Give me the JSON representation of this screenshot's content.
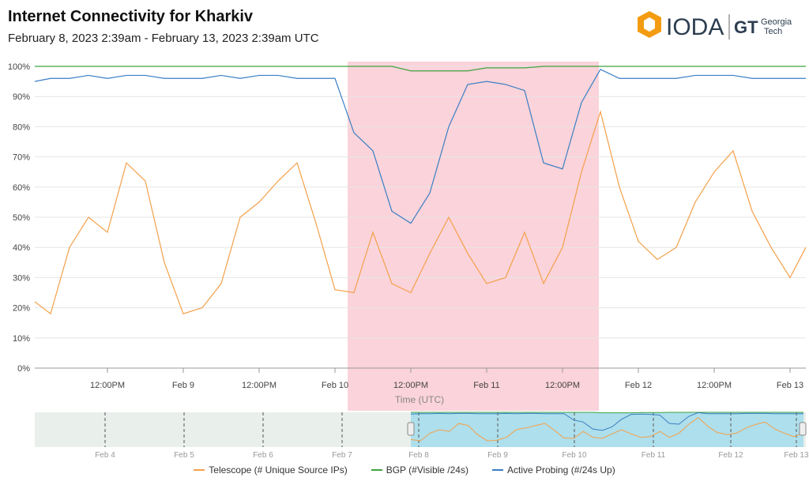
{
  "header": {
    "title": "Internet Connectivity for  Kharkiv",
    "subtitle": "February 8, 2023 2:39am - February 13, 2023 2:39am UTC",
    "logo_text": "IODA",
    "partner_text": "Georgia Tech"
  },
  "chart_data": {
    "type": "line",
    "xlabel": "Time (UTC)",
    "ylabel": "",
    "ylim": [
      0,
      100
    ],
    "y_ticks": [
      "0%",
      "10%",
      "20%",
      "30%",
      "40%",
      "50%",
      "60%",
      "70%",
      "80%",
      "90%",
      "100%"
    ],
    "x_ticks": [
      "12:00PM",
      "Feb 9",
      "12:00PM",
      "Feb 10",
      "12:00PM",
      "Feb 11",
      "12:00PM",
      "Feb 12",
      "12:00PM",
      "Feb 13"
    ],
    "grid": true,
    "legend_placement": "bottom",
    "highlight": {
      "from": "2023-02-10T02:00",
      "to": "2023-02-11T17:45",
      "color": "#fbd3da"
    },
    "x_start": "2023-02-08T00:00",
    "x_step_hours": 3,
    "series": [
      {
        "name": "Telescope (# Unique Source IPs)",
        "color": "#f4a04a",
        "values": [
          22,
          18,
          40,
          50,
          45,
          68,
          62,
          35,
          18,
          20,
          28,
          50,
          55,
          62,
          68,
          48,
          26,
          25,
          45,
          28,
          25,
          38,
          50,
          38,
          28,
          30,
          45,
          28,
          40,
          65,
          85,
          60,
          42,
          36,
          40,
          55,
          65,
          72,
          52,
          40,
          30,
          40
        ]
      },
      {
        "name": "BGP (#Visible /24s)",
        "color": "#3fa33f",
        "values": [
          100,
          100,
          100,
          100,
          100,
          100,
          100,
          100,
          100,
          100,
          100,
          100,
          100,
          100,
          100,
          100,
          100,
          100,
          100,
          100,
          98.5,
          98.5,
          98.5,
          98.5,
          99.5,
          99.5,
          99.5,
          100,
          100,
          100,
          100,
          100,
          100,
          100,
          100,
          100,
          100,
          100,
          100,
          100,
          100,
          100
        ]
      },
      {
        "name": "Active Probing (#/24s Up)",
        "color": "#3a7fc4",
        "values": [
          95,
          96,
          96,
          97,
          96,
          97,
          97,
          96,
          96,
          96,
          97,
          96,
          97,
          97,
          96,
          96,
          96,
          78,
          72,
          52,
          48,
          58,
          80,
          94,
          95,
          94,
          92,
          68,
          66,
          88,
          99,
          96,
          96,
          96,
          96,
          97,
          97,
          97,
          96,
          96,
          96,
          96
        ]
      }
    ],
    "overview": {
      "x_ticks": [
        "Feb 4",
        "Feb 5",
        "Feb 6",
        "Feb 7",
        "Feb 8",
        "Feb 9",
        "Feb 10",
        "Feb 11",
        "Feb 12",
        "Feb 13"
      ],
      "selection": {
        "from": "Feb 8",
        "to": "Feb 13"
      }
    }
  }
}
